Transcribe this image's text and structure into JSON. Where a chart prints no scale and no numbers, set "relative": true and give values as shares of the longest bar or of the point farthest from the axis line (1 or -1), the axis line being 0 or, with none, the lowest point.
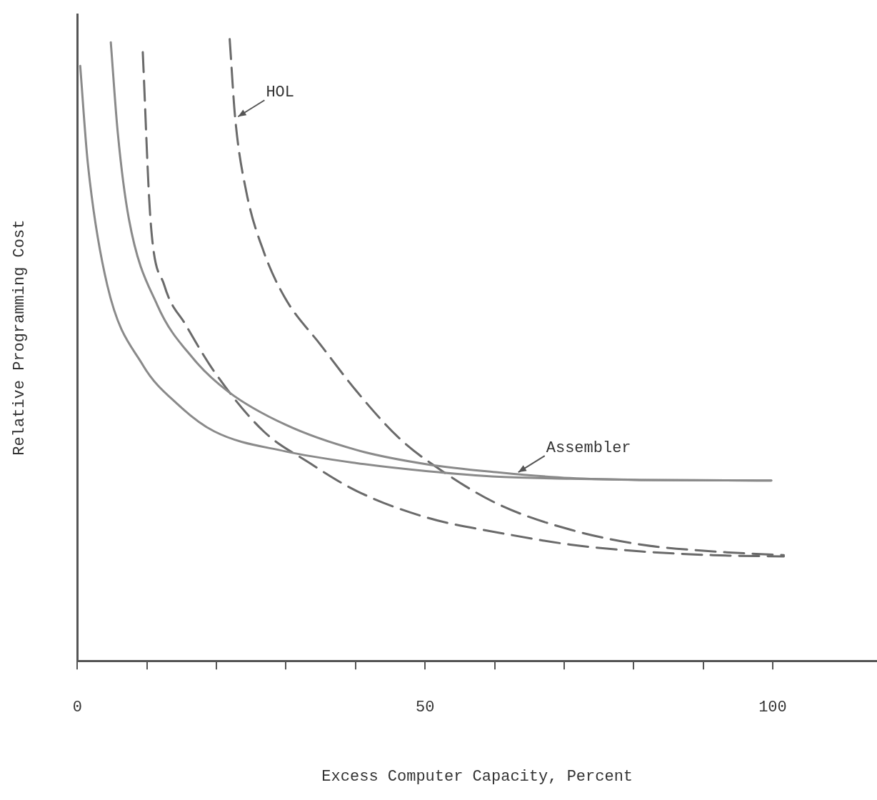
{
  "chart_data": {
    "type": "line",
    "relative": true,
    "xlabel": "Excess Computer Capacity, Percent",
    "ylabel": "Relative Programming Cost",
    "xlim": [
      0,
      115
    ],
    "xticks": [
      0,
      {
        "value": 10,
        "label": null
      },
      {
        "value": 20,
        "label": null
      },
      {
        "value": 30,
        "label": null
      },
      {
        "value": 40,
        "label": null
      },
      50,
      {
        "value": 60,
        "label": null
      },
      {
        "value": 70,
        "label": null
      },
      {
        "value": 80,
        "label": null
      },
      {
        "value": 90,
        "label": null
      },
      100
    ],
    "grid": false,
    "legend": false,
    "marker": "none",
    "annotations": [
      {
        "text": "HOL",
        "x": 22.7,
        "y": 0.872
      },
      {
        "text": "Assembler",
        "x": 63,
        "y": 0.3
      }
    ],
    "series": [
      {
        "color": "#8a8a8a",
        "line_style": "solid",
        "x": [
          0.4,
          1.5,
          4.3,
          9.4,
          14.5,
          19.7,
          29.9,
          40.2,
          50.4,
          60.7,
          70.9,
          81.1,
          99.8
        ],
        "values": [
          0.957,
          0.8,
          0.604,
          0.476,
          0.412,
          0.369,
          0.337,
          0.318,
          0.305,
          0.296,
          0.293,
          0.291,
          0.29
        ]
      },
      {
        "color": "#8a8a8a",
        "line_style": "solid",
        "x": [
          4.8,
          5.8,
          7.4,
          11.5,
          16.6,
          21.7,
          29.9,
          40.2,
          50.4,
          60.7,
          70.9,
          81.1,
          99.8
        ],
        "values": [
          0.995,
          0.85,
          0.711,
          0.572,
          0.487,
          0.433,
          0.38,
          0.339,
          0.316,
          0.303,
          0.294,
          0.291,
          0.29
        ]
      },
      {
        "color": "#6a6a6a",
        "line_style": "dashed",
        "x": [
          9.4,
          10.5,
          12.5,
          15.6,
          19.7,
          26.8,
          33,
          40.2,
          50.4,
          60.7,
          70.9,
          81.1,
          91.4,
          101.6
        ],
        "values": [
          0.979,
          0.711,
          0.604,
          0.54,
          0.465,
          0.369,
          0.321,
          0.273,
          0.23,
          0.206,
          0.187,
          0.176,
          0.17,
          0.168
        ]
      },
      {
        "color": "#6a6a6a",
        "line_style": "dashed",
        "x": [
          21.9,
          22.7,
          24.3,
          26.8,
          29.9,
          35,
          40.2,
          46.3,
          52.5,
          60.7,
          70.9,
          81.1,
          91.4,
          101.6
        ],
        "values": [
          1.0,
          0.872,
          0.754,
          0.658,
          0.583,
          0.508,
          0.433,
          0.358,
          0.305,
          0.251,
          0.211,
          0.187,
          0.176,
          0.17
        ]
      }
    ]
  }
}
